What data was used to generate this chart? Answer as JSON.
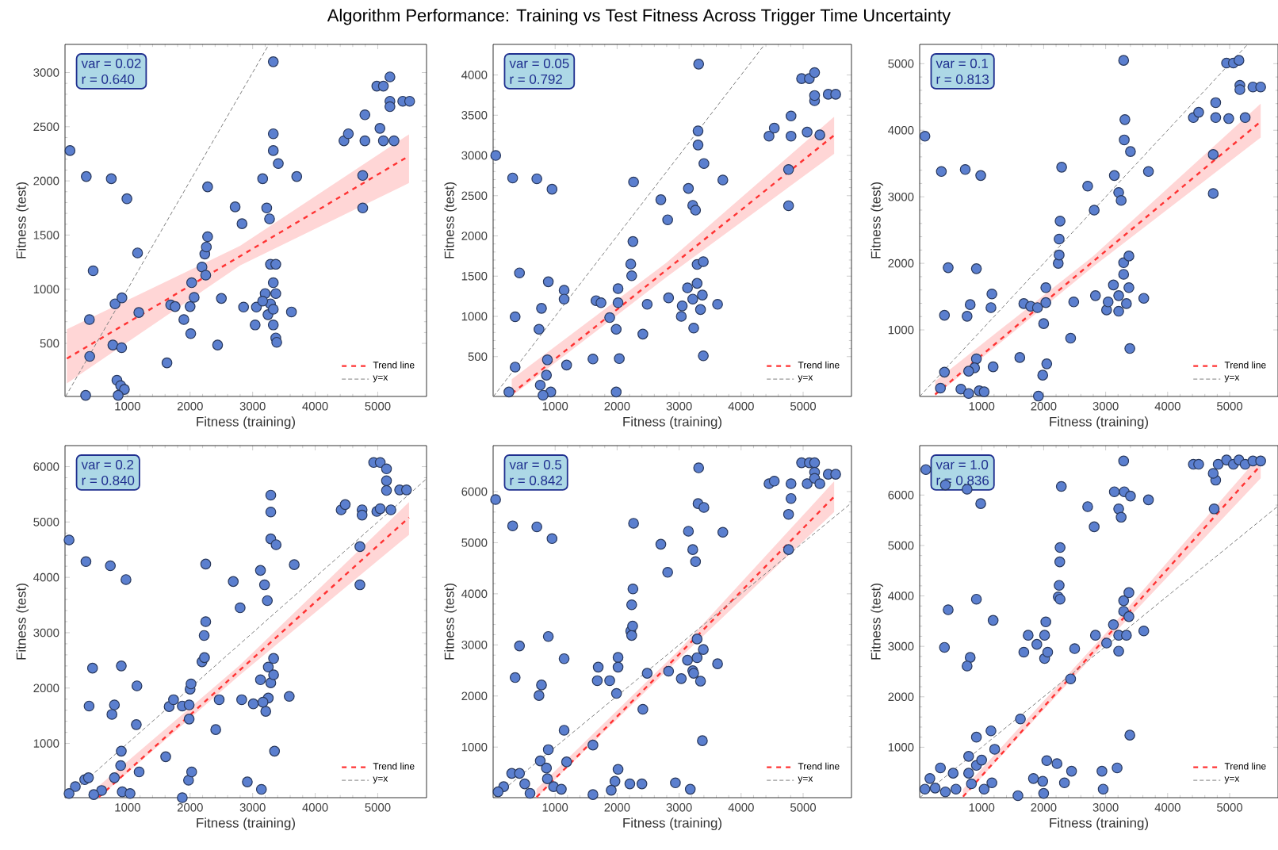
{
  "chart_data": [
    {
      "type": "scatter",
      "title": "Algorithm Performance: Training vs Test Fitness Across Trigger Time Uncertainty",
      "xlabel": "Fitness (training)",
      "ylabel": "Fitness (test)",
      "annotations": [
        "var = 0.02",
        "r = 0.640"
      ],
      "xlim": [
        0,
        5780
      ],
      "ylim": [
        10,
        3260
      ],
      "xticks": [
        1000,
        2000,
        3000,
        4000,
        5000
      ],
      "yticks": [
        500,
        1000,
        1500,
        2000,
        2500,
        3000
      ],
      "legend": "bottom right",
      "series": [
        {
          "type": "scatter",
          "color": "#5b7fcf",
          "marker": "circle",
          "x": [
            80,
            340,
            740,
            990,
            450,
            1160,
            390,
            800,
            910,
            1180,
            395,
            765,
            905,
            830,
            890,
            950,
            330,
            850,
            1630,
            1690,
            1760,
            1900,
            2000,
            2010,
            2025,
            2065,
            2190,
            2235,
            2260,
            2280,
            2280,
            2250,
            2500,
            2440,
            2720,
            2830,
            2855,
            3040,
            3060,
            3160,
            3225,
            3270,
            3330,
            3330,
            3330,
            3410,
            3285,
            3370,
            3330,
            3370,
            3285,
            3245,
            3200,
            3330,
            3370,
            3385,
            3330,
            3160,
            3620,
            3705,
            4460,
            4530,
            4795,
            4795,
            4760,
            4760,
            4985,
            5090,
            5195,
            5035,
            5090,
            5195,
            5195,
            5260,
            5400,
            5510
          ],
          "values": [
            2280,
            2040,
            2020,
            1835,
            1170,
            1335,
            720,
            865,
            920,
            785,
            380,
            485,
            460,
            160,
            110,
            75,
            20,
            20,
            320,
            855,
            840,
            720,
            840,
            590,
            1060,
            925,
            1205,
            1325,
            1390,
            1485,
            1945,
            1130,
            915,
            485,
            1760,
            1605,
            835,
            670,
            835,
            2020,
            1750,
            1650,
            2280,
            2435,
            3100,
            2160,
            1230,
            1230,
            1060,
            960,
            865,
            765,
            960,
            670,
            550,
            510,
            815,
            890,
            790,
            2040,
            2370,
            2435,
            2610,
            2370,
            2050,
            1750,
            2875,
            2875,
            2960,
            2485,
            2370,
            2735,
            2685,
            2370,
            2735,
            2735
          ]
        },
        {
          "type": "line",
          "name": "Trend line",
          "color": "#ff3333",
          "line_style": "dashed",
          "marker": "none",
          "x": [
            30,
            2800,
            5500
          ],
          "values": [
            360,
            1305,
            2230
          ],
          "lower": [
            130,
            1220,
            1980
          ],
          "upper": [
            630,
            1400,
            2430
          ]
        },
        {
          "type": "line",
          "name": "y=x",
          "color": "#808080",
          "line_style": "dashed",
          "marker": "none",
          "x": [
            10,
            3260
          ],
          "values": [
            10,
            3260
          ]
        }
      ]
    },
    {
      "type": "scatter",
      "xlabel": "Fitness (training)",
      "ylabel": "Fitness (test)",
      "annotations": [
        "var = 0.05",
        "r = 0.792"
      ],
      "xlim": [
        0,
        5780
      ],
      "ylim": [
        5,
        4380
      ],
      "xticks": [
        1000,
        2000,
        3000,
        4000,
        5000
      ],
      "yticks": [
        500,
        1000,
        1500,
        2000,
        2500,
        3000,
        3500,
        4000
      ],
      "legend": "bottom right",
      "series": [
        {
          "type": "scatter",
          "color": "#5b7fcf",
          "marker": "circle",
          "x": [
            42,
            315,
            705,
            950,
            425,
            890,
            1145,
            1145,
            355,
            780,
            740,
            355,
            875,
            860,
            1185,
            255,
            760,
            930,
            805,
            1610,
            1660,
            1740,
            1880,
            1985,
            2015,
            2015,
            2035,
            1985,
            2220,
            2235,
            2255,
            2265,
            2485,
            2415,
            2705,
            2815,
            2830,
            3035,
            3050,
            3150,
            3220,
            3265,
            3305,
            3305,
            3315,
            3400,
            3135,
            3220,
            3290,
            3290,
            3390,
            3345,
            3235,
            3390,
            3375,
            3620,
            3705,
            4450,
            4535,
            4805,
            4805,
            4765,
            4765,
            4975,
            5100,
            5185,
            5065,
            5185,
            5185,
            5270,
            5405,
            5525
          ],
          "values": [
            3000,
            2720,
            2710,
            2580,
            1540,
            1430,
            1325,
            1215,
            995,
            1100,
            840,
            370,
            460,
            270,
            395,
            60,
            145,
            60,
            20,
            470,
            1195,
            1170,
            985,
            840,
            1345,
            1170,
            475,
            60,
            1650,
            1505,
            1930,
            2670,
            1150,
            780,
            2450,
            2200,
            1230,
            1000,
            1130,
            2590,
            2380,
            2320,
            3305,
            3130,
            4135,
            2900,
            1355,
            1215,
            1410,
            1645,
            1680,
            1085,
            855,
            510,
            1265,
            1150,
            2695,
            3240,
            3340,
            3490,
            3240,
            2825,
            2375,
            3955,
            3955,
            4030,
            3290,
            3680,
            3745,
            3255,
            3760,
            3760
          ]
        },
        {
          "type": "line",
          "name": "Trend line",
          "color": "#ff3333",
          "line_style": "dashed",
          "marker": "none",
          "x": [
            300,
            2800,
            5500
          ],
          "values": [
            40,
            1580,
            3250
          ],
          "lower": [
            10,
            1490,
            3020
          ],
          "upper": [
            220,
            1670,
            3480
          ]
        },
        {
          "type": "line",
          "name": "y=x",
          "color": "#808080",
          "line_style": "dashed",
          "marker": "none",
          "x": [
            5,
            4380
          ],
          "values": [
            5,
            4380
          ]
        }
      ]
    },
    {
      "type": "scatter",
      "xlabel": "Fitness (training)",
      "ylabel": "Fitness (test)",
      "annotations": [
        "var = 0.1",
        "r = 0.813"
      ],
      "xlim": [
        0,
        5780
      ],
      "ylim": [
        0,
        5290
      ],
      "xticks": [
        1000,
        2000,
        3000,
        4000,
        5000
      ],
      "yticks": [
        1000,
        2000,
        3000,
        4000,
        5000
      ],
      "legend": "bottom right",
      "series": [
        {
          "type": "scatter",
          "color": "#5b7fcf",
          "marker": "circle",
          "x": [
            85,
            350,
            735,
            985,
            460,
            915,
            400,
            765,
            815,
            1165,
            1150,
            400,
            915,
            885,
            790,
            1185,
            335,
            665,
            960,
            1040,
            790,
            1915,
            1615,
            1680,
            1790,
            1900,
            2000,
            2035,
            2035,
            1985,
            2050,
            2235,
            2250,
            2250,
            2265,
            2290,
            2485,
            2435,
            2710,
            2815,
            2835,
            3015,
            3040,
            3140,
            3210,
            3250,
            3290,
            3300,
            3310,
            3400,
            3125,
            3210,
            3290,
            3375,
            3290,
            3375,
            3335,
            3210,
            3390,
            3615,
            3690,
            4415,
            4500,
            4775,
            4775,
            4735,
            4735,
            4950,
            5060,
            5150,
            4985,
            5165,
            5165,
            5250,
            5375,
            5500
          ],
          "values": [
            3910,
            3380,
            3410,
            3320,
            1935,
            1920,
            1220,
            1205,
            1380,
            1540,
            1335,
            365,
            565,
            430,
            380,
            445,
            125,
            110,
            85,
            70,
            45,
            5,
            585,
            1395,
            1355,
            1335,
            1095,
            1410,
            1635,
            320,
            490,
            2000,
            2125,
            2365,
            2635,
            3445,
            1420,
            875,
            3160,
            2800,
            1515,
            1300,
            1420,
            3320,
            3065,
            2945,
            5050,
            3855,
            4160,
            3680,
            1675,
            1515,
            2010,
            2110,
            1835,
            1635,
            1395,
            1280,
            720,
            1475,
            3380,
            4190,
            4270,
            4415,
            4190,
            3635,
            3050,
            5010,
            5010,
            5050,
            4175,
            4675,
            4610,
            4190,
            4650,
            4650
          ]
        },
        {
          "type": "line",
          "name": "Trend line",
          "color": "#ff3333",
          "line_style": "dashed",
          "marker": "none",
          "x": [
            250,
            2800,
            5500
          ],
          "values": [
            30,
            2030,
            4130
          ],
          "lower": [
            5,
            1950,
            3890
          ],
          "upper": [
            230,
            2110,
            4400
          ]
        },
        {
          "type": "line",
          "name": "y=x",
          "color": "#808080",
          "line_style": "dashed",
          "marker": "none",
          "x": [
            0,
            5290
          ],
          "values": [
            0,
            5290
          ]
        }
      ]
    },
    {
      "type": "scatter",
      "xlabel": "Fitness (training)",
      "ylabel": "Fitness (test)",
      "annotations": [
        "var = 0.2",
        "r = 0.840"
      ],
      "xlim": [
        0,
        5780
      ],
      "ylim": [
        20,
        6380
      ],
      "xticks": [
        1000,
        2000,
        3000,
        4000,
        5000
      ],
      "yticks": [
        1000,
        2000,
        3000,
        4000,
        5000,
        6000
      ],
      "legend": "bottom right",
      "series": [
        {
          "type": "scatter",
          "color": "#5b7fcf",
          "marker": "circle",
          "x": [
            65,
            335,
            725,
            975,
            440,
            900,
            1150,
            1140,
            385,
            790,
            750,
            900,
            890,
            790,
            315,
            375,
            1185,
            165,
            65,
            585,
            915,
            1040,
            460,
            1875,
            1610,
            1665,
            1735,
            1875,
            1985,
            1975,
            2025,
            2000,
            2015,
            1985,
            2190,
            2230,
            2225,
            2250,
            2250,
            2465,
            2410,
            2690,
            2800,
            2825,
            2915,
            3010,
            3140,
            3125,
            3190,
            3235,
            3290,
            3290,
            3290,
            3375,
            3250,
            3335,
            3290,
            3335,
            3125,
            3250,
            3210,
            3165,
            3350,
            3585,
            3665,
            4415,
            4480,
            4750,
            4750,
            4715,
            4715,
            4935,
            5040,
            5140,
            4985,
            5040,
            5140,
            5140,
            5210,
            5350,
            5460
          ],
          "values": [
            4675,
            4285,
            4210,
            3960,
            2360,
            2400,
            2040,
            1340,
            1675,
            1695,
            1525,
            860,
            600,
            380,
            345,
            380,
            485,
            220,
            95,
            150,
            125,
            95,
            75,
            20,
            760,
            1665,
            1790,
            1675,
            1440,
            335,
            485,
            1980,
            2075,
            1695,
            2475,
            2550,
            2950,
            3200,
            4240,
            1790,
            1250,
            3925,
            3450,
            1790,
            305,
            1715,
            170,
            4125,
            3865,
            3580,
            5485,
            5180,
            4695,
            4590,
            2380,
            2535,
            2095,
            2240,
            2150,
            1820,
            1580,
            1745,
            860,
            1850,
            4230,
            5220,
            5315,
            5220,
            5125,
            4555,
            3865,
            6075,
            6075,
            5960,
            5190,
            5240,
            5745,
            5570,
            5220,
            5580,
            5580
          ]
        },
        {
          "type": "line",
          "name": "Trend line",
          "color": "#ff3333",
          "line_style": "dashed",
          "marker": "none",
          "x": [
            540,
            2800,
            5500
          ],
          "values": [
            30,
            2330,
            5080
          ],
          "lower": [
            20,
            2240,
            4770
          ],
          "upper": [
            230,
            2420,
            5360
          ]
        },
        {
          "type": "line",
          "name": "y=x",
          "color": "#808080",
          "line_style": "dashed",
          "marker": "none",
          "x": [
            20,
            5780
          ],
          "values": [
            20,
            5780
          ]
        }
      ]
    },
    {
      "type": "scatter",
      "xlabel": "Fitness (training)",
      "ylabel": "Fitness (test)",
      "annotations": [
        "var = 0.5",
        "r = 0.842"
      ],
      "xlim": [
        0,
        5780
      ],
      "ylim": [
        10,
        6900
      ],
      "xticks": [
        1000,
        2000,
        3000,
        4000,
        5000
      ],
      "yticks": [
        1000,
        2000,
        3000,
        4000,
        5000,
        6000
      ],
      "legend": "bottom right",
      "series": [
        {
          "type": "scatter",
          "color": "#5b7fcf",
          "marker": "circle",
          "x": [
            40,
            315,
            705,
            950,
            425,
            890,
            1145,
            1145,
            355,
            780,
            740,
            890,
            1185,
            760,
            300,
            425,
            170,
            80,
            510,
            860,
            875,
            975,
            1100,
            595,
            1610,
            1695,
            1680,
            1880,
            1990,
            2015,
            2015,
            2015,
            1965,
            1905,
            1610,
            2220,
            2235,
            2255,
            2235,
            2265,
            2250,
            2485,
            2415,
            2205,
            2400,
            2705,
            2815,
            2830,
            3035,
            2940,
            3180,
            3150,
            3220,
            3265,
            3315,
            3305,
            3400,
            3135,
            3220,
            3290,
            3390,
            3290,
            3345,
            3235,
            3375,
            3620,
            3705,
            4450,
            4535,
            4805,
            4805,
            4765,
            4765,
            4975,
            5100,
            5185,
            5065,
            5185,
            5185,
            5270,
            5405,
            5525
          ],
          "values": [
            5845,
            5330,
            5310,
            5080,
            2980,
            3165,
            2730,
            1330,
            2360,
            2215,
            2010,
            950,
            710,
            730,
            485,
            485,
            225,
            125,
            280,
            590,
            380,
            225,
            175,
            95,
            1040,
            2565,
            2300,
            2300,
            2050,
            2755,
            2565,
            565,
            330,
            155,
            70,
            3270,
            3185,
            4095,
            3785,
            5380,
            3370,
            2445,
            1740,
            280,
            280,
            4970,
            4420,
            2485,
            2340,
            300,
            175,
            5225,
            4865,
            4630,
            6465,
            5765,
            5690,
            2700,
            2495,
            3115,
            2910,
            2750,
            2290,
            2445,
            1125,
            2630,
            5205,
            6155,
            6205,
            6155,
            5865,
            5555,
            4865,
            6565,
            6565,
            6565,
            6155,
            6380,
            6260,
            6155,
            6340,
            6340
          ]
        },
        {
          "type": "line",
          "name": "Trend line",
          "color": "#ff3333",
          "line_style": "dashed",
          "marker": "none",
          "x": [
            700,
            3000,
            5500
          ],
          "values": [
            20,
            2815,
            5900
          ],
          "lower": [
            10,
            2730,
            5600
          ],
          "upper": [
            180,
            2900,
            6200
          ]
        },
        {
          "type": "line",
          "name": "y=x",
          "color": "#808080",
          "line_style": "dashed",
          "marker": "none",
          "x": [
            10,
            5780
          ],
          "values": [
            10,
            5780
          ]
        }
      ]
    },
    {
      "type": "scatter",
      "xlabel": "Fitness (training)",
      "ylabel": "Fitness (test)",
      "annotations": [
        "var = 1.0",
        "r = 0.836"
      ],
      "xlim": [
        0,
        5780
      ],
      "ylim": [
        0,
        6980
      ],
      "xticks": [
        1000,
        2000,
        3000,
        4000,
        5000
      ],
      "yticks": [
        1000,
        2000,
        3000,
        4000,
        5000,
        6000
      ],
      "legend": "bottom right",
      "series": [
        {
          "type": "scatter",
          "color": "#5b7fcf",
          "marker": "circle",
          "x": [
            100,
            415,
            765,
            985,
            460,
            915,
            400,
            815,
            765,
            1185,
            1150,
            915,
            1210,
            790,
            335,
            540,
            915,
            1000,
            790,
            165,
            85,
            250,
            585,
            835,
            1040,
            1165,
            415,
            1625,
            1680,
            1750,
            1890,
            2015,
            2015,
            2065,
            2035,
            2050,
            1985,
            2235,
            2265,
            2250,
            2260,
            2265,
            2285,
            2435,
            2500,
            1835,
            2215,
            2335,
            2450,
            2000,
            1585,
            2710,
            2815,
            2835,
            3015,
            2940,
            2960,
            3185,
            3140,
            3210,
            3250,
            3290,
            3300,
            3400,
            3125,
            3210,
            3290,
            3375,
            3290,
            3375,
            3335,
            3210,
            3390,
            3615,
            3690,
            4415,
            4500,
            4750,
            4775,
            4735,
            4815,
            4950,
            5060,
            5150,
            5250,
            5375,
            5500
          ],
          "values": [
            6505,
            6200,
            6115,
            5830,
            3725,
            3935,
            2980,
            2780,
            2610,
            3515,
            1325,
            1200,
            960,
            820,
            590,
            485,
            640,
            745,
            485,
            380,
            170,
            190,
            170,
            275,
            170,
            295,
            115,
            1560,
            2885,
            3220,
            3040,
            3220,
            2760,
            2885,
            3485,
            735,
            325,
            3980,
            3935,
            4210,
            4675,
            4960,
            6170,
            2355,
            2955,
            380,
            675,
            295,
            525,
            85,
            40,
            5770,
            5370,
            3220,
            3065,
            525,
            170,
            590,
            6065,
            5725,
            5560,
            6675,
            6065,
            5980,
            3430,
            3220,
            3905,
            4065,
            3695,
            3590,
            3220,
            2905,
            1240,
            3305,
            5905,
            6610,
            6610,
            5725,
            6295,
            6430,
            6610,
            6695,
            6610,
            6695,
            6610,
            6675,
            6675
          ]
        },
        {
          "type": "line",
          "name": "Trend line",
          "color": "#ff3333",
          "line_style": "dashed",
          "marker": "none",
          "x": [
            700,
            3000,
            5500
          ],
          "values": [
            20,
            3166,
            6590
          ],
          "lower": [
            5,
            3080,
            6330
          ],
          "upper": [
            170,
            3260,
            6800
          ]
        },
        {
          "type": "line",
          "name": "y=x",
          "color": "#808080",
          "line_style": "dashed",
          "marker": "none",
          "x": [
            0,
            5780
          ],
          "values": [
            0,
            5780
          ]
        }
      ]
    }
  ]
}
